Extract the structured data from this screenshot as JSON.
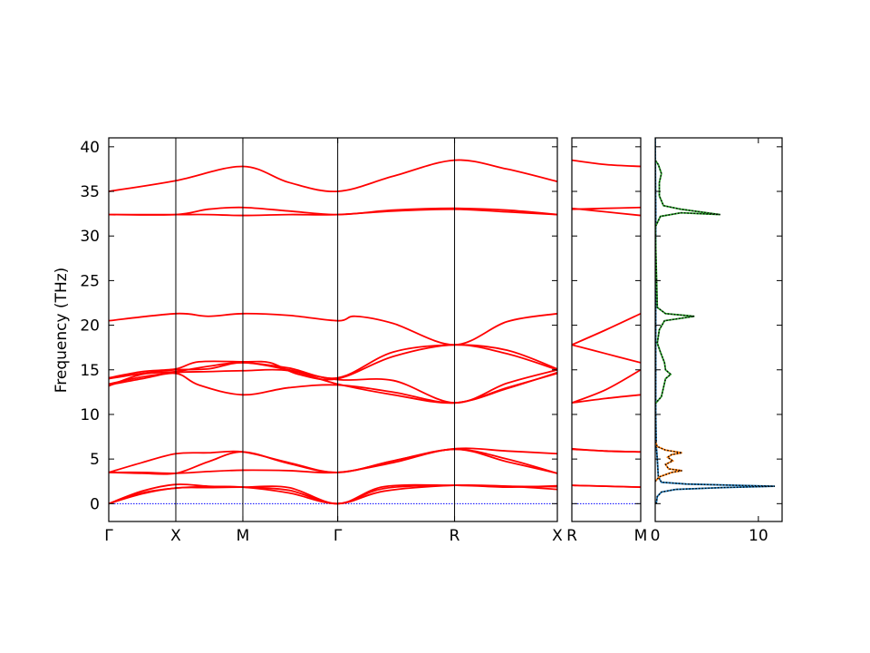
{
  "chart_data": [
    {
      "type": "line",
      "panel": "band-structure-main",
      "ylabel": "Frequency (THz)",
      "ylim": [
        -2,
        41
      ],
      "yticks": [
        0,
        5,
        10,
        15,
        20,
        25,
        30,
        35,
        40
      ],
      "xlim": [
        0,
        4.73
      ],
      "kpoints": [
        {
          "label": "Γ",
          "x": 0
        },
        {
          "label": "X",
          "x": 0.707
        },
        {
          "label": "M",
          "x": 1.414
        },
        {
          "label": "Γ",
          "x": 2.414
        },
        {
          "label": "R",
          "x": 3.646
        },
        {
          "label": "X",
          "x": 4.73
        }
      ],
      "line_color": "#ff0000",
      "zero_line_color": "#0000ff",
      "bands": [
        [
          [
            0,
            0
          ],
          [
            0.35,
            1.4
          ],
          [
            0.707,
            2.15
          ],
          [
            1.05,
            1.95
          ],
          [
            1.414,
            1.85
          ],
          [
            1.9,
            1.5
          ],
          [
            2.414,
            0
          ],
          [
            2.9,
            1.7
          ],
          [
            3.646,
            2.05
          ],
          [
            4.2,
            1.85
          ],
          [
            4.73,
            2.0
          ]
        ],
        [
          [
            0,
            0
          ],
          [
            0.35,
            1.2
          ],
          [
            0.707,
            1.75
          ],
          [
            1.05,
            1.9
          ],
          [
            1.414,
            1.85
          ],
          [
            1.9,
            1.2
          ],
          [
            2.414,
            0
          ],
          [
            2.9,
            1.4
          ],
          [
            3.646,
            2.05
          ],
          [
            4.2,
            1.95
          ],
          [
            4.73,
            1.6
          ]
        ],
        [
          [
            0,
            0
          ],
          [
            0.35,
            1.1
          ],
          [
            0.707,
            1.75
          ],
          [
            1.05,
            1.8
          ],
          [
            1.414,
            1.85
          ],
          [
            1.9,
            1.8
          ],
          [
            2.414,
            0
          ],
          [
            2.9,
            1.9
          ],
          [
            3.646,
            2.05
          ],
          [
            4.2,
            1.95
          ],
          [
            4.73,
            1.9
          ]
        ],
        [
          [
            0,
            3.5
          ],
          [
            0.35,
            4.6
          ],
          [
            0.707,
            5.6
          ],
          [
            1.05,
            5.7
          ],
          [
            1.414,
            5.8
          ],
          [
            1.9,
            4.6
          ],
          [
            2.414,
            3.5
          ],
          [
            3.0,
            4.8
          ],
          [
            3.646,
            6.15
          ],
          [
            4.2,
            5.9
          ],
          [
            4.73,
            5.6
          ]
        ],
        [
          [
            0,
            3.5
          ],
          [
            0.35,
            3.4
          ],
          [
            0.707,
            3.4
          ],
          [
            1.05,
            4.7
          ],
          [
            1.414,
            5.8
          ],
          [
            1.9,
            4.5
          ],
          [
            2.414,
            3.5
          ],
          [
            3.0,
            4.8
          ],
          [
            3.646,
            6.1
          ],
          [
            4.2,
            5.0
          ],
          [
            4.73,
            3.4
          ]
        ],
        [
          [
            0,
            3.5
          ],
          [
            0.35,
            3.5
          ],
          [
            0.707,
            3.4
          ],
          [
            1.05,
            3.6
          ],
          [
            1.414,
            3.75
          ],
          [
            1.9,
            3.7
          ],
          [
            2.414,
            3.5
          ],
          [
            3.0,
            4.6
          ],
          [
            3.646,
            6.1
          ],
          [
            4.2,
            4.7
          ],
          [
            4.73,
            3.4
          ]
        ],
        [
          [
            0,
            13.3
          ],
          [
            0.35,
            14.0
          ],
          [
            0.707,
            14.6
          ],
          [
            0.95,
            13.3
          ],
          [
            1.414,
            12.2
          ],
          [
            1.9,
            13.0
          ],
          [
            2.414,
            13.3
          ],
          [
            3.0,
            12.5
          ],
          [
            3.646,
            11.3
          ],
          [
            4.2,
            13.0
          ],
          [
            4.73,
            14.6
          ]
        ],
        [
          [
            0,
            13.4
          ],
          [
            0.35,
            14.2
          ],
          [
            0.707,
            14.7
          ],
          [
            1.05,
            14.8
          ],
          [
            1.414,
            14.9
          ],
          [
            1.9,
            14.9
          ],
          [
            2.414,
            13.4
          ],
          [
            3.0,
            12.2
          ],
          [
            3.646,
            11.3
          ],
          [
            4.2,
            12.9
          ],
          [
            4.73,
            14.7
          ]
        ],
        [
          [
            0,
            14.0
          ],
          [
            0.35,
            14.6
          ],
          [
            0.707,
            15.0
          ],
          [
            1.05,
            15.1
          ],
          [
            1.414,
            15.8
          ],
          [
            1.9,
            15.0
          ],
          [
            2.414,
            13.9
          ],
          [
            3.0,
            13.8
          ],
          [
            3.646,
            11.3
          ],
          [
            4.2,
            13.5
          ],
          [
            4.73,
            15.0
          ]
        ],
        [
          [
            0,
            14.1
          ],
          [
            0.35,
            14.8
          ],
          [
            0.707,
            15.1
          ],
          [
            0.95,
            15.9
          ],
          [
            1.414,
            15.9
          ],
          [
            1.7,
            15.8
          ],
          [
            2.0,
            14.5
          ],
          [
            2.414,
            14.0
          ],
          [
            3.0,
            16.5
          ],
          [
            3.646,
            17.8
          ],
          [
            4.2,
            16.8
          ],
          [
            4.73,
            15.0
          ]
        ],
        [
          [
            0,
            13.2
          ],
          [
            0.35,
            14.5
          ],
          [
            0.707,
            14.8
          ],
          [
            1.05,
            15.4
          ],
          [
            1.414,
            15.8
          ],
          [
            1.9,
            15.2
          ],
          [
            2.414,
            14.1
          ],
          [
            3.0,
            17.0
          ],
          [
            3.646,
            17.8
          ],
          [
            4.2,
            17.2
          ],
          [
            4.73,
            15.1
          ]
        ],
        [
          [
            0,
            20.5
          ],
          [
            0.707,
            21.3
          ],
          [
            1.05,
            21.0
          ],
          [
            1.414,
            21.3
          ],
          [
            1.9,
            21.1
          ],
          [
            2.414,
            20.5
          ],
          [
            2.6,
            21.0
          ],
          [
            3.0,
            20.2
          ],
          [
            3.646,
            17.8
          ],
          [
            4.2,
            20.4
          ],
          [
            4.73,
            21.3
          ]
        ],
        [
          [
            0,
            32.4
          ],
          [
            0.707,
            32.4
          ],
          [
            1.05,
            33.0
          ],
          [
            1.414,
            33.2
          ],
          [
            1.9,
            32.8
          ],
          [
            2.414,
            32.4
          ],
          [
            3.0,
            32.9
          ],
          [
            3.646,
            33.1
          ],
          [
            4.2,
            32.9
          ],
          [
            4.73,
            32.4
          ]
        ],
        [
          [
            0,
            32.4
          ],
          [
            0.707,
            32.4
          ],
          [
            1.05,
            32.4
          ],
          [
            1.414,
            32.3
          ],
          [
            1.9,
            32.4
          ],
          [
            2.414,
            32.4
          ],
          [
            3.0,
            32.8
          ],
          [
            3.646,
            33.0
          ],
          [
            4.2,
            32.7
          ],
          [
            4.73,
            32.4
          ]
        ],
        [
          [
            0,
            35.0
          ],
          [
            0.707,
            36.2
          ],
          [
            1.414,
            37.8
          ],
          [
            1.9,
            36.0
          ],
          [
            2.414,
            35.0
          ],
          [
            3.0,
            36.7
          ],
          [
            3.646,
            38.5
          ],
          [
            4.2,
            37.5
          ],
          [
            4.73,
            36.1
          ]
        ]
      ]
    },
    {
      "type": "line",
      "panel": "band-structure-right",
      "ylim": [
        -2,
        41
      ],
      "xlim": [
        0,
        1
      ],
      "kpoints": [
        {
          "label": "R",
          "x": 0
        },
        {
          "label": "M",
          "x": 1
        }
      ],
      "line_color": "#ff0000",
      "zero_line_color": "#0000ff",
      "bands": [
        [
          [
            0,
            2.05
          ],
          [
            0.5,
            1.95
          ],
          [
            1,
            1.85
          ]
        ],
        [
          [
            0,
            2.05
          ],
          [
            0.5,
            1.95
          ],
          [
            1,
            1.85
          ]
        ],
        [
          [
            0,
            6.15
          ],
          [
            0.5,
            5.9
          ],
          [
            1,
            5.8
          ]
        ],
        [
          [
            0,
            6.1
          ],
          [
            0.5,
            5.9
          ],
          [
            1,
            5.8
          ]
        ],
        [
          [
            0,
            11.3
          ],
          [
            0.5,
            11.8
          ],
          [
            1,
            12.2
          ]
        ],
        [
          [
            0,
            11.3
          ],
          [
            0.5,
            12.8
          ],
          [
            1,
            15.0
          ]
        ],
        [
          [
            0,
            17.8
          ],
          [
            0.5,
            16.8
          ],
          [
            1,
            15.8
          ]
        ],
        [
          [
            0,
            17.8
          ],
          [
            0.5,
            19.5
          ],
          [
            1,
            21.3
          ]
        ],
        [
          [
            0,
            33.1
          ],
          [
            0.5,
            32.7
          ],
          [
            1,
            32.3
          ]
        ],
        [
          [
            0,
            33.0
          ],
          [
            0.5,
            33.1
          ],
          [
            1,
            33.2
          ]
        ],
        [
          [
            0,
            38.5
          ],
          [
            0.5,
            38.0
          ],
          [
            1,
            37.8
          ]
        ]
      ]
    },
    {
      "type": "line",
      "panel": "partial-dos",
      "xlim": [
        0,
        12.3
      ],
      "ylim": [
        -2,
        41
      ],
      "xticks": [
        0,
        10
      ],
      "series": [
        {
          "color": "#1f77b4",
          "points": [
            [
              0.1,
              0
            ],
            [
              0.2,
              0.8
            ],
            [
              0.6,
              1.3
            ],
            [
              2.0,
              1.6
            ],
            [
              6.5,
              1.8
            ],
            [
              11.6,
              1.95
            ],
            [
              8.0,
              2.05
            ],
            [
              3.0,
              2.2
            ],
            [
              0.6,
              2.4
            ],
            [
              0.3,
              3.0
            ],
            [
              0.2,
              5.0
            ],
            [
              0.1,
              6.5
            ],
            [
              0.05,
              10
            ],
            [
              0.05,
              20
            ],
            [
              0.05,
              33
            ],
            [
              0,
              41
            ]
          ]
        },
        {
          "color": "#ff7f0e",
          "points": [
            [
              0,
              2.5
            ],
            [
              0.4,
              3.0
            ],
            [
              1.6,
              3.5
            ],
            [
              2.6,
              3.7
            ],
            [
              1.3,
              3.9
            ],
            [
              1.0,
              4.4
            ],
            [
              1.7,
              4.8
            ],
            [
              1.2,
              5.2
            ],
            [
              1.6,
              5.5
            ],
            [
              2.6,
              5.7
            ],
            [
              1.0,
              6.0
            ],
            [
              0.2,
              6.4
            ],
            [
              0,
              7
            ]
          ]
        },
        {
          "color": "#2ca02c",
          "points": [
            [
              0,
              11.2
            ],
            [
              0.6,
              12.0
            ],
            [
              0.8,
              13.0
            ],
            [
              1.0,
              14.0
            ],
            [
              1.5,
              14.5
            ],
            [
              1.0,
              15.0
            ],
            [
              0.9,
              15.8
            ],
            [
              0.5,
              17.0
            ],
            [
              0.2,
              18.0
            ],
            [
              0.4,
              19.5
            ],
            [
              0.9,
              20.5
            ],
            [
              3.8,
              21.0
            ],
            [
              1.0,
              21.3
            ],
            [
              0.2,
              22.0
            ],
            [
              0,
              31.0
            ],
            [
              0.5,
              32.2
            ],
            [
              2.5,
              32.6
            ],
            [
              6.3,
              32.4
            ],
            [
              2.5,
              33.0
            ],
            [
              0.8,
              33.4
            ],
            [
              0.4,
              34.5
            ],
            [
              0.4,
              36.0
            ],
            [
              0.6,
              37.0
            ],
            [
              0.3,
              38.0
            ],
            [
              0,
              38.5
            ]
          ]
        }
      ]
    }
  ]
}
